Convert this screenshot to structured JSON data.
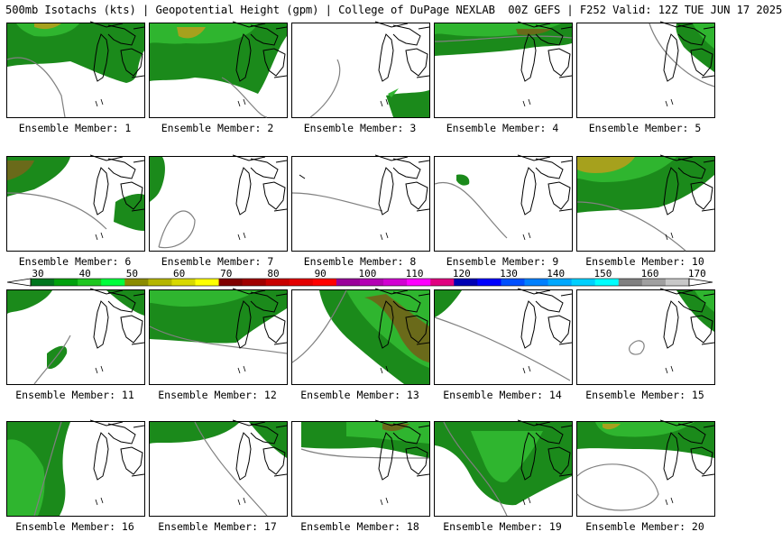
{
  "header": {
    "title": "500mb Isotachs (kts) | Geopotential Height (gpm) | College of DuPage NEXLAB  00Z GEFS | F252 Valid: 12Z TUE JUN 17 2025"
  },
  "colorbar": {
    "ticks": [
      "30",
      "40",
      "50",
      "60",
      "70",
      "80",
      "90",
      "100",
      "110",
      "120",
      "130",
      "140",
      "150",
      "160",
      "170"
    ],
    "colors": [
      "#00761f",
      "#00a10d",
      "#1ec61f",
      "#00ff3c",
      "#8b8b00",
      "#b5b500",
      "#d8d800",
      "#ffff00",
      "#800000",
      "#a00000",
      "#c80000",
      "#e30000",
      "#ff0000",
      "#9a009a",
      "#b400b4",
      "#d200d2",
      "#ff00ff",
      "#e00080",
      "#0000b4",
      "#0000ff",
      "#0050ff",
      "#0080ff",
      "#00a8ff",
      "#00d0ff",
      "#00ffff",
      "#808080",
      "#a0a0a0",
      "#c8c8c8"
    ]
  },
  "panels": [
    {
      "label": "Ensemble Member: 1"
    },
    {
      "label": "Ensemble Member: 2"
    },
    {
      "label": "Ensemble Member: 3"
    },
    {
      "label": "Ensemble Member: 4"
    },
    {
      "label": "Ensemble Member: 5"
    },
    {
      "label": "Ensemble Member: 6"
    },
    {
      "label": "Ensemble Member: 7"
    },
    {
      "label": "Ensemble Member: 8"
    },
    {
      "label": "Ensemble Member: 9"
    },
    {
      "label": "Ensemble Member: 10"
    },
    {
      "label": "Ensemble Member: 11"
    },
    {
      "label": "Ensemble Member: 12"
    },
    {
      "label": "Ensemble Member: 13"
    },
    {
      "label": "Ensemble Member: 14"
    },
    {
      "label": "Ensemble Member: 15"
    },
    {
      "label": "Ensemble Member: 16"
    },
    {
      "label": "Ensemble Member: 17"
    },
    {
      "label": "Ensemble Member: 18"
    },
    {
      "label": "Ensemble Member: 19"
    },
    {
      "label": "Ensemble Member: 20"
    }
  ]
}
